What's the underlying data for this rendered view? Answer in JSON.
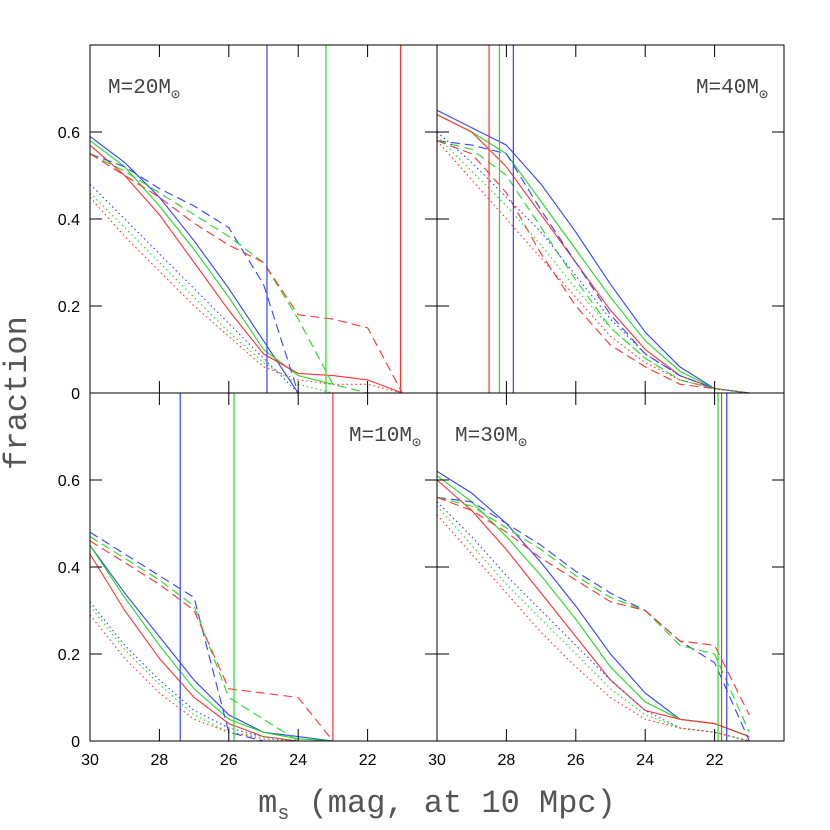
{
  "figure": {
    "ylabel": "fraction",
    "xlabel": {
      "main": "m",
      "sub": "s",
      "rest": " (mag, at 10 Mpc)"
    }
  },
  "chart_data": [
    {
      "type": "line",
      "label": {
        "main": "M=20M",
        "sub": "⊙"
      },
      "label_corner": "top-left",
      "xlim": [
        30,
        20
      ],
      "ylim": [
        0,
        0.8
      ],
      "xticks": [
        30,
        28,
        26,
        24,
        22
      ],
      "yticks": [
        0,
        0.2,
        0.4,
        0.6
      ],
      "show_xtick_labels": false,
      "show_ytick_labels": true,
      "x": [
        30,
        29,
        28,
        27,
        26,
        25,
        24,
        23,
        22,
        21,
        20
      ],
      "vlines": [
        {
          "color": "#3344ff",
          "x": 24.9
        },
        {
          "color": "#22dd22",
          "x": 23.2
        },
        {
          "color": "#ff3333",
          "x": 21.05
        }
      ],
      "series": [
        {
          "color": "#3344ff",
          "style": "solid",
          "values": [
            0.59,
            0.53,
            0.45,
            0.35,
            0.24,
            0.12,
            0,
            null,
            null,
            null,
            null
          ]
        },
        {
          "color": "#22dd22",
          "style": "solid",
          "values": [
            0.58,
            0.52,
            0.43,
            0.33,
            0.22,
            0.1,
            0.04,
            0.02,
            null,
            null,
            null
          ]
        },
        {
          "color": "#ff3333",
          "style": "solid",
          "values": [
            0.57,
            0.5,
            0.41,
            0.3,
            0.19,
            0.09,
            0.045,
            0.04,
            0.03,
            0,
            null
          ]
        },
        {
          "color": "#3344ff",
          "style": "dashed",
          "values": [
            0.55,
            0.52,
            0.47,
            0.43,
            0.38,
            0.25,
            0,
            null,
            null,
            null,
            null
          ]
        },
        {
          "color": "#22dd22",
          "style": "dashed",
          "values": [
            0.55,
            0.51,
            0.46,
            0.41,
            0.36,
            0.3,
            0.17,
            0.02,
            0,
            null,
            null
          ]
        },
        {
          "color": "#ff3333",
          "style": "dashed",
          "values": [
            0.55,
            0.5,
            0.45,
            0.39,
            0.34,
            0.3,
            0.18,
            0.17,
            0.15,
            0,
            null
          ]
        },
        {
          "color": "#3344ff",
          "style": "dotted",
          "values": [
            0.48,
            0.4,
            0.32,
            0.24,
            0.16,
            0.08,
            0,
            null,
            null,
            null,
            null
          ]
        },
        {
          "color": "#22dd22",
          "style": "dotted",
          "values": [
            0.46,
            0.38,
            0.3,
            0.22,
            0.14,
            0.07,
            0.02,
            0,
            null,
            null,
            null
          ]
        },
        {
          "color": "#ff3333",
          "style": "dotted",
          "values": [
            0.45,
            0.36,
            0.28,
            0.2,
            0.13,
            0.06,
            0.03,
            0.02,
            0.02,
            0,
            null
          ]
        }
      ]
    },
    {
      "type": "line",
      "label": {
        "main": "M=40M",
        "sub": "⊙"
      },
      "label_corner": "top-right",
      "xlim": [
        30,
        20
      ],
      "ylim": [
        0,
        0.8
      ],
      "xticks": [
        30,
        28,
        26,
        24,
        22
      ],
      "yticks": [
        0,
        0.2,
        0.4,
        0.6
      ],
      "show_xtick_labels": false,
      "show_ytick_labels": false,
      "x": [
        30,
        29,
        28,
        27,
        26,
        25,
        24,
        23,
        22,
        21,
        20
      ],
      "vlines": [
        {
          "color": "#ff3333",
          "x": 28.5
        },
        {
          "color": "#22dd22",
          "x": 28.2
        },
        {
          "color": "#3344ff",
          "x": 27.8
        }
      ],
      "series": [
        {
          "color": "#3344ff",
          "style": "solid",
          "values": [
            0.65,
            0.61,
            0.57,
            0.48,
            0.37,
            0.25,
            0.14,
            0.06,
            0.01,
            0,
            null
          ]
        },
        {
          "color": "#22dd22",
          "style": "solid",
          "values": [
            0.64,
            0.6,
            0.55,
            0.44,
            0.33,
            0.22,
            0.12,
            0.05,
            0.01,
            0,
            null
          ]
        },
        {
          "color": "#ff3333",
          "style": "solid",
          "values": [
            0.64,
            0.6,
            0.52,
            0.41,
            0.3,
            0.19,
            0.1,
            0.04,
            0.01,
            0,
            null
          ]
        },
        {
          "color": "#3344ff",
          "style": "dashed",
          "values": [
            0.58,
            0.57,
            0.55,
            0.42,
            0.3,
            0.18,
            0.09,
            0.04,
            0.01,
            0,
            null
          ]
        },
        {
          "color": "#22dd22",
          "style": "dashed",
          "values": [
            0.58,
            0.56,
            0.5,
            0.38,
            0.26,
            0.15,
            0.08,
            0.03,
            0.01,
            0,
            null
          ]
        },
        {
          "color": "#ff3333",
          "style": "dashed",
          "values": [
            0.58,
            0.55,
            0.46,
            0.32,
            0.2,
            0.11,
            0.06,
            0.02,
            0.01,
            0,
            null
          ]
        },
        {
          "color": "#3344ff",
          "style": "dotted",
          "values": [
            0.6,
            0.53,
            0.45,
            0.37,
            0.27,
            0.17,
            0.09,
            0.04,
            0.01,
            0,
            null
          ]
        },
        {
          "color": "#22dd22",
          "style": "dotted",
          "values": [
            0.59,
            0.51,
            0.43,
            0.34,
            0.24,
            0.15,
            0.08,
            0.03,
            0.01,
            0,
            null
          ]
        },
        {
          "color": "#ff3333",
          "style": "dotted",
          "values": [
            0.58,
            0.49,
            0.4,
            0.31,
            0.22,
            0.13,
            0.07,
            0.03,
            0.01,
            0,
            null
          ]
        }
      ]
    },
    {
      "type": "line",
      "label": {
        "main": "M=10M",
        "sub": "⊙"
      },
      "label_corner": "top-right",
      "xlim": [
        30,
        20
      ],
      "ylim": [
        0,
        0.8
      ],
      "xticks": [
        30,
        28,
        26,
        24,
        22
      ],
      "yticks": [
        0,
        0.2,
        0.4,
        0.6
      ],
      "show_xtick_labels": true,
      "show_ytick_labels": true,
      "x": [
        30,
        29,
        28,
        27,
        26,
        25,
        24,
        23,
        22,
        21,
        20
      ],
      "vlines": [
        {
          "color": "#3344ff",
          "x": 27.4
        },
        {
          "color": "#22dd22",
          "x": 25.85
        },
        {
          "color": "#ff3333",
          "x": 23.0
        }
      ],
      "series": [
        {
          "color": "#3344ff",
          "style": "solid",
          "values": [
            0.45,
            0.34,
            0.24,
            0.14,
            0.06,
            0.02,
            0.01,
            0,
            null,
            null,
            null
          ]
        },
        {
          "color": "#22dd22",
          "style": "solid",
          "values": [
            0.45,
            0.33,
            0.22,
            0.12,
            0.05,
            0.02,
            0.005,
            0,
            null,
            null,
            null
          ]
        },
        {
          "color": "#ff3333",
          "style": "solid",
          "values": [
            0.43,
            0.3,
            0.19,
            0.1,
            0.04,
            0.01,
            0,
            null,
            null,
            null,
            null
          ]
        },
        {
          "color": "#3344ff",
          "style": "dashed",
          "values": [
            0.48,
            0.43,
            0.38,
            0.33,
            0.02,
            0,
            null,
            null,
            null,
            null,
            null
          ]
        },
        {
          "color": "#22dd22",
          "style": "dashed",
          "values": [
            0.47,
            0.42,
            0.37,
            0.31,
            0.1,
            0.05,
            0,
            null,
            null,
            null,
            null
          ]
        },
        {
          "color": "#ff3333",
          "style": "dashed",
          "values": [
            0.46,
            0.41,
            0.36,
            0.3,
            0.12,
            0.11,
            0.1,
            0,
            null,
            null,
            null
          ]
        },
        {
          "color": "#3344ff",
          "style": "dotted",
          "values": [
            0.32,
            0.22,
            0.14,
            0.07,
            0.03,
            0.01,
            0,
            null,
            null,
            null,
            null
          ]
        },
        {
          "color": "#22dd22",
          "style": "dotted",
          "values": [
            0.31,
            0.21,
            0.13,
            0.06,
            0.02,
            0.01,
            0,
            null,
            null,
            null,
            null
          ]
        },
        {
          "color": "#ff3333",
          "style": "dotted",
          "values": [
            0.29,
            0.19,
            0.11,
            0.05,
            0.02,
            0.005,
            0,
            null,
            null,
            null,
            null
          ]
        }
      ]
    },
    {
      "type": "line",
      "label": {
        "main": "M=30M",
        "sub": "⊙"
      },
      "label_corner": "top-left",
      "xlim": [
        30,
        20
      ],
      "ylim": [
        0,
        0.8
      ],
      "xticks": [
        30,
        28,
        26,
        24,
        22
      ],
      "yticks": [
        0,
        0.2,
        0.4,
        0.6
      ],
      "show_xtick_labels": true,
      "show_ytick_labels": false,
      "x": [
        30,
        29,
        28,
        27,
        26,
        25,
        24,
        23,
        22,
        21,
        20
      ],
      "vlines": [
        {
          "color": "#22dd22",
          "x": 21.9
        },
        {
          "color": "#ff3333",
          "x": 21.8
        },
        {
          "color": "#3344ff",
          "x": 21.65
        }
      ],
      "series": [
        {
          "color": "#3344ff",
          "style": "solid",
          "values": [
            0.62,
            0.57,
            0.5,
            0.41,
            0.31,
            0.2,
            0.11,
            0.05,
            0.04,
            0.01,
            null
          ]
        },
        {
          "color": "#22dd22",
          "style": "solid",
          "values": [
            0.61,
            0.55,
            0.47,
            0.38,
            0.28,
            0.17,
            0.09,
            0.05,
            0.04,
            0.01,
            null
          ]
        },
        {
          "color": "#ff3333",
          "style": "solid",
          "values": [
            0.6,
            0.53,
            0.44,
            0.34,
            0.24,
            0.14,
            0.07,
            0.05,
            0.04,
            0.01,
            null
          ]
        },
        {
          "color": "#3344ff",
          "style": "dashed",
          "values": [
            0.56,
            0.55,
            0.5,
            0.45,
            0.39,
            0.34,
            0.3,
            0.23,
            0.18,
            0,
            null
          ]
        },
        {
          "color": "#22dd22",
          "style": "dashed",
          "values": [
            0.56,
            0.54,
            0.49,
            0.44,
            0.38,
            0.33,
            0.3,
            0.22,
            0.2,
            0.02,
            null
          ]
        },
        {
          "color": "#ff3333",
          "style": "dashed",
          "values": [
            0.56,
            0.53,
            0.48,
            0.42,
            0.37,
            0.32,
            0.3,
            0.23,
            0.22,
            0.06,
            null
          ]
        },
        {
          "color": "#3344ff",
          "style": "dotted",
          "values": [
            0.55,
            0.47,
            0.38,
            0.3,
            0.22,
            0.14,
            0.07,
            0.03,
            0.02,
            0,
            null
          ]
        },
        {
          "color": "#22dd22",
          "style": "dotted",
          "values": [
            0.54,
            0.45,
            0.36,
            0.28,
            0.2,
            0.12,
            0.06,
            0.03,
            0.02,
            0,
            null
          ]
        },
        {
          "color": "#ff3333",
          "style": "dotted",
          "values": [
            0.52,
            0.43,
            0.34,
            0.25,
            0.17,
            0.1,
            0.05,
            0.03,
            0.02,
            0,
            null
          ]
        }
      ]
    }
  ]
}
